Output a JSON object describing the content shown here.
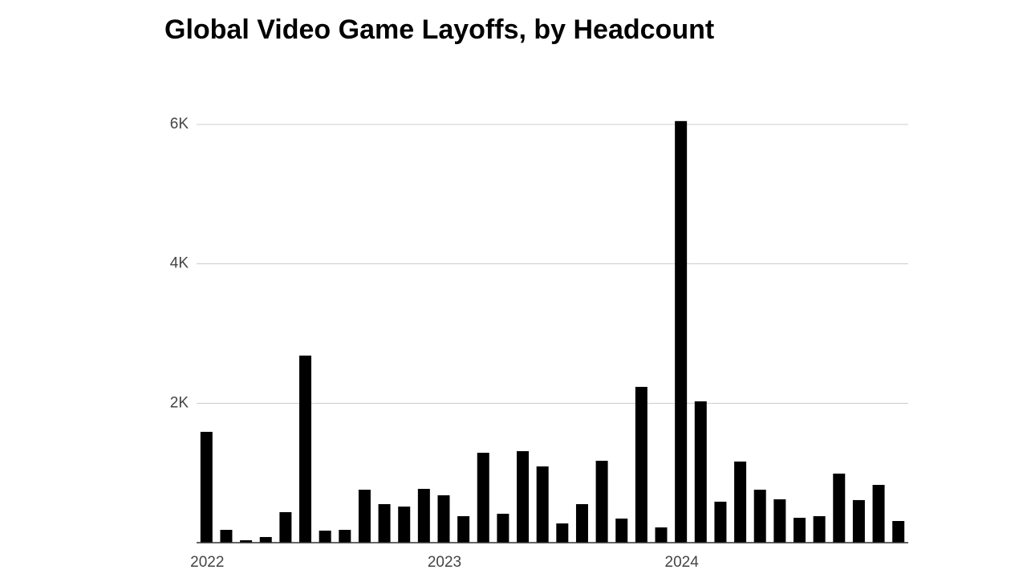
{
  "chart_data": {
    "type": "bar",
    "title": "Global Video Game Layoffs, by Headcount",
    "categories": [
      "2022",
      null,
      null,
      null,
      null,
      null,
      null,
      null,
      null,
      null,
      null,
      null,
      "2023",
      null,
      null,
      null,
      null,
      null,
      null,
      null,
      null,
      null,
      null,
      null,
      "2024",
      null,
      null,
      null,
      null,
      null,
      null,
      null,
      null,
      null,
      null,
      null
    ],
    "values": [
      1590,
      184,
      35,
      81,
      438,
      2684,
      173,
      184,
      760,
      553,
      518,
      772,
      680,
      380,
      1290,
      415,
      1313,
      1094,
      276,
      553,
      1175,
      346,
      2235,
      219,
      6048,
      2028,
      588,
      1164,
      760,
      622,
      357,
      380,
      991,
      611,
      829,
      311
    ],
    "color": "#000000",
    "ylim": [
      0,
      6100
    ],
    "yticks": [
      {
        "value": 2000,
        "label": "2K"
      },
      {
        "value": 4000,
        "label": "4K"
      },
      {
        "value": 6000,
        "label": "6K"
      }
    ],
    "grid": true
  }
}
